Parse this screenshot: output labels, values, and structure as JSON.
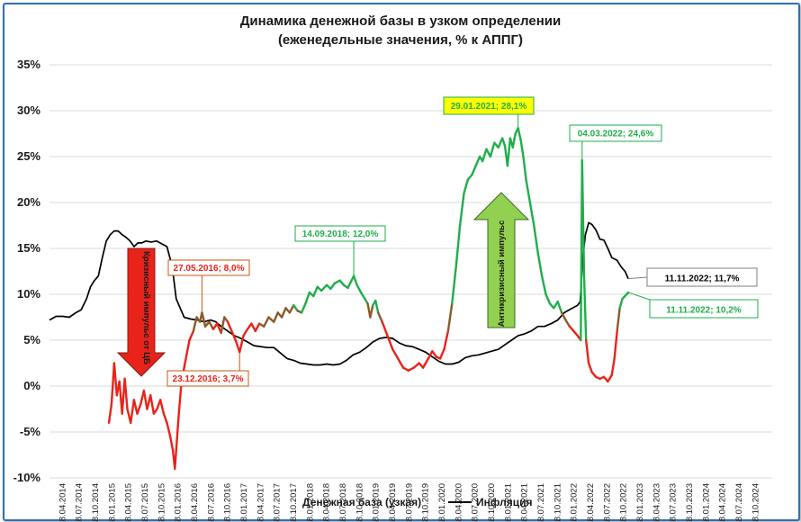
{
  "chart_data": {
    "type": "line",
    "title": "Динамика денежной базы в узком определении",
    "subtitle": "(еженедельные значения, % к АППГ)",
    "ylim": [
      -10,
      35
    ],
    "y_ticks": [
      "-10%",
      "-5%",
      "0%",
      "5%",
      "10%",
      "15%",
      "20%",
      "25%",
      "30%",
      "35%"
    ],
    "x_ticks": [
      "18.04.2014",
      "18.07.2014",
      "18.10.2014",
      "18.01.2015",
      "18.04.2015",
      "18.07.2015",
      "18.10.2015",
      "18.01.2016",
      "18.04.2016",
      "18.07.2016",
      "18.10.2016",
      "18.01.2017",
      "18.04.2017",
      "18.07.2017",
      "18.10.2017",
      "18.01.2018",
      "18.04.2018",
      "18.07.2018",
      "18.10.2018",
      "18.01.2019",
      "18.04.2019",
      "18.07.2019",
      "18.10.2019",
      "18.01.2020",
      "18.04.2020",
      "18.07.2020",
      "18.10.2020",
      "18.01.2021",
      "18.04.2021",
      "18.07.2021",
      "18.10.2021",
      "18.01.2022",
      "18.04.2022",
      "18.07.2022",
      "18.10.2022",
      "18.01.2023",
      "18.04.2023",
      "18.07.2023",
      "18.10.2023",
      "18.01.2024",
      "18.04.2024",
      "18.07.2024",
      "18.10.2024"
    ],
    "x_range": [
      2014.1,
      2025.05
    ],
    "series": [
      {
        "name": "Денежная база (узкая)",
        "color_low": "#e8231a",
        "color_high": "#1fae4b",
        "points": [
          [
            2015.0,
            -4.0
          ],
          [
            2015.04,
            -2.0
          ],
          [
            2015.08,
            2.5
          ],
          [
            2015.12,
            -1.0
          ],
          [
            2015.16,
            0.5
          ],
          [
            2015.2,
            -3.0
          ],
          [
            2015.24,
            0.8
          ],
          [
            2015.28,
            -2.5
          ],
          [
            2015.33,
            -4.0
          ],
          [
            2015.38,
            -1.5
          ],
          [
            2015.43,
            -3.0
          ],
          [
            2015.48,
            -2.0
          ],
          [
            2015.53,
            -0.5
          ],
          [
            2015.58,
            -2.5
          ],
          [
            2015.63,
            -1.0
          ],
          [
            2015.68,
            -3.0
          ],
          [
            2015.73,
            -2.5
          ],
          [
            2015.78,
            -1.5
          ],
          [
            2015.83,
            -3.0
          ],
          [
            2015.88,
            -4.0
          ],
          [
            2015.93,
            -5.5
          ],
          [
            2015.97,
            -7.0
          ],
          [
            2016.0,
            -9.0
          ],
          [
            2016.03,
            -6.0
          ],
          [
            2016.06,
            -3.0
          ],
          [
            2016.1,
            0.5
          ],
          [
            2016.14,
            2.0
          ],
          [
            2016.18,
            3.5
          ],
          [
            2016.22,
            5.0
          ],
          [
            2016.28,
            6.0
          ],
          [
            2016.33,
            7.5
          ],
          [
            2016.38,
            7.0
          ],
          [
            2016.41,
            8.0
          ],
          [
            2016.46,
            6.5
          ],
          [
            2016.52,
            7.0
          ],
          [
            2016.58,
            6.2
          ],
          [
            2016.64,
            6.8
          ],
          [
            2016.7,
            5.8
          ],
          [
            2016.75,
            7.5
          ],
          [
            2016.8,
            7.0
          ],
          [
            2016.86,
            6.0
          ],
          [
            2016.92,
            5.0
          ],
          [
            2016.98,
            3.7
          ],
          [
            2017.04,
            5.5
          ],
          [
            2017.1,
            6.2
          ],
          [
            2017.16,
            6.8
          ],
          [
            2017.22,
            6.0
          ],
          [
            2017.28,
            6.8
          ],
          [
            2017.35,
            6.5
          ],
          [
            2017.42,
            7.5
          ],
          [
            2017.5,
            7.0
          ],
          [
            2017.56,
            8.0
          ],
          [
            2017.62,
            7.5
          ],
          [
            2017.68,
            8.5
          ],
          [
            2017.74,
            8.0
          ],
          [
            2017.8,
            8.8
          ],
          [
            2017.86,
            8.2
          ],
          [
            2017.92,
            8.0
          ],
          [
            2017.98,
            9.0
          ],
          [
            2018.04,
            10.2
          ],
          [
            2018.1,
            9.8
          ],
          [
            2018.16,
            10.8
          ],
          [
            2018.22,
            10.4
          ],
          [
            2018.3,
            11.0
          ],
          [
            2018.36,
            10.6
          ],
          [
            2018.42,
            11.2
          ],
          [
            2018.5,
            11.5
          ],
          [
            2018.56,
            11.0
          ],
          [
            2018.62,
            10.7
          ],
          [
            2018.71,
            12.0
          ],
          [
            2018.76,
            11.0
          ],
          [
            2018.82,
            10.2
          ],
          [
            2018.88,
            9.5
          ],
          [
            2018.92,
            9.0
          ],
          [
            2018.96,
            7.5
          ],
          [
            2019.0,
            8.8
          ],
          [
            2019.04,
            9.3
          ],
          [
            2019.08,
            8.0
          ],
          [
            2019.14,
            7.0
          ],
          [
            2019.22,
            5.5
          ],
          [
            2019.3,
            4.0
          ],
          [
            2019.38,
            3.0
          ],
          [
            2019.46,
            2.0
          ],
          [
            2019.54,
            1.7
          ],
          [
            2019.62,
            2.0
          ],
          [
            2019.7,
            2.5
          ],
          [
            2019.76,
            2.0
          ],
          [
            2019.84,
            3.0
          ],
          [
            2019.9,
            3.8
          ],
          [
            2019.96,
            3.2
          ],
          [
            2020.02,
            3.0
          ],
          [
            2020.08,
            4.0
          ],
          [
            2020.14,
            6.0
          ],
          [
            2020.2,
            9.0
          ],
          [
            2020.26,
            13.0
          ],
          [
            2020.32,
            17.5
          ],
          [
            2020.38,
            21.0
          ],
          [
            2020.44,
            22.5
          ],
          [
            2020.5,
            23.0
          ],
          [
            2020.56,
            24.0
          ],
          [
            2020.62,
            25.0
          ],
          [
            2020.66,
            24.5
          ],
          [
            2020.72,
            25.8
          ],
          [
            2020.78,
            25.0
          ],
          [
            2020.84,
            26.5
          ],
          [
            2020.9,
            26.0
          ],
          [
            2020.96,
            27.0
          ],
          [
            2021.0,
            26.2
          ],
          [
            2021.04,
            24.0
          ],
          [
            2021.08,
            27.0
          ],
          [
            2021.12,
            26.0
          ],
          [
            2021.16,
            27.5
          ],
          [
            2021.2,
            28.1
          ],
          [
            2021.24,
            26.8
          ],
          [
            2021.28,
            25.0
          ],
          [
            2021.32,
            22.5
          ],
          [
            2021.38,
            20.0
          ],
          [
            2021.44,
            17.5
          ],
          [
            2021.5,
            14.5
          ],
          [
            2021.56,
            12.0
          ],
          [
            2021.62,
            10.0
          ],
          [
            2021.68,
            9.0
          ],
          [
            2021.74,
            8.5
          ],
          [
            2021.8,
            9.2
          ],
          [
            2021.86,
            8.0
          ],
          [
            2021.92,
            7.2
          ],
          [
            2021.98,
            6.5
          ],
          [
            2022.04,
            6.0
          ],
          [
            2022.1,
            5.5
          ],
          [
            2022.15,
            5.0
          ],
          [
            2022.17,
            24.6
          ],
          [
            2022.2,
            12.0
          ],
          [
            2022.23,
            5.0
          ],
          [
            2022.27,
            2.5
          ],
          [
            2022.32,
            1.5
          ],
          [
            2022.38,
            1.0
          ],
          [
            2022.44,
            0.8
          ],
          [
            2022.5,
            1.0
          ],
          [
            2022.56,
            0.5
          ],
          [
            2022.62,
            1.2
          ],
          [
            2022.66,
            3.0
          ],
          [
            2022.7,
            6.0
          ],
          [
            2022.74,
            8.5
          ],
          [
            2022.78,
            9.5
          ],
          [
            2022.87,
            10.2
          ]
        ]
      },
      {
        "name": "Инфляция",
        "color": "#000000",
        "points": [
          [
            2014.1,
            7.2
          ],
          [
            2014.2,
            7.6
          ],
          [
            2014.3,
            7.6
          ],
          [
            2014.4,
            7.5
          ],
          [
            2014.5,
            8.0
          ],
          [
            2014.58,
            8.3
          ],
          [
            2014.66,
            9.5
          ],
          [
            2014.72,
            10.8
          ],
          [
            2014.78,
            11.5
          ],
          [
            2014.84,
            12.0
          ],
          [
            2014.9,
            14.0
          ],
          [
            2014.96,
            15.8
          ],
          [
            2015.02,
            16.5
          ],
          [
            2015.08,
            16.9
          ],
          [
            2015.14,
            16.9
          ],
          [
            2015.2,
            16.5
          ],
          [
            2015.26,
            16.2
          ],
          [
            2015.32,
            15.8
          ],
          [
            2015.38,
            15.2
          ],
          [
            2015.44,
            15.6
          ],
          [
            2015.5,
            15.6
          ],
          [
            2015.56,
            15.8
          ],
          [
            2015.64,
            15.7
          ],
          [
            2015.72,
            15.8
          ],
          [
            2015.8,
            15.5
          ],
          [
            2015.88,
            15.2
          ],
          [
            2015.96,
            13.0
          ],
          [
            2016.02,
            9.5
          ],
          [
            2016.08,
            8.5
          ],
          [
            2016.14,
            7.5
          ],
          [
            2016.24,
            7.3
          ],
          [
            2016.34,
            7.2
          ],
          [
            2016.44,
            7.0
          ],
          [
            2016.54,
            7.2
          ],
          [
            2016.62,
            7.0
          ],
          [
            2016.7,
            6.5
          ],
          [
            2016.8,
            6.0
          ],
          [
            2016.9,
            5.5
          ],
          [
            2017.0,
            5.2
          ],
          [
            2017.1,
            4.8
          ],
          [
            2017.2,
            4.4
          ],
          [
            2017.3,
            4.3
          ],
          [
            2017.4,
            4.2
          ],
          [
            2017.5,
            4.2
          ],
          [
            2017.6,
            3.6
          ],
          [
            2017.7,
            3.0
          ],
          [
            2017.8,
            2.8
          ],
          [
            2017.9,
            2.5
          ],
          [
            2018.0,
            2.4
          ],
          [
            2018.1,
            2.3
          ],
          [
            2018.2,
            2.3
          ],
          [
            2018.3,
            2.4
          ],
          [
            2018.4,
            2.3
          ],
          [
            2018.5,
            2.4
          ],
          [
            2018.6,
            2.8
          ],
          [
            2018.7,
            3.4
          ],
          [
            2018.8,
            3.7
          ],
          [
            2018.9,
            4.2
          ],
          [
            2019.0,
            4.8
          ],
          [
            2019.1,
            5.2
          ],
          [
            2019.2,
            5.3
          ],
          [
            2019.3,
            5.2
          ],
          [
            2019.4,
            4.7
          ],
          [
            2019.5,
            4.4
          ],
          [
            2019.6,
            4.3
          ],
          [
            2019.7,
            4.0
          ],
          [
            2019.8,
            3.7
          ],
          [
            2019.9,
            3.2
          ],
          [
            2020.0,
            2.7
          ],
          [
            2020.1,
            2.4
          ],
          [
            2020.2,
            2.4
          ],
          [
            2020.3,
            2.6
          ],
          [
            2020.4,
            3.1
          ],
          [
            2020.5,
            3.3
          ],
          [
            2020.6,
            3.4
          ],
          [
            2020.7,
            3.6
          ],
          [
            2020.8,
            3.8
          ],
          [
            2020.9,
            4.0
          ],
          [
            2021.0,
            4.5
          ],
          [
            2021.1,
            5.0
          ],
          [
            2021.2,
            5.5
          ],
          [
            2021.3,
            5.7
          ],
          [
            2021.4,
            6.0
          ],
          [
            2021.5,
            6.5
          ],
          [
            2021.6,
            6.5
          ],
          [
            2021.7,
            6.8
          ],
          [
            2021.8,
            7.2
          ],
          [
            2021.9,
            8.0
          ],
          [
            2022.0,
            8.4
          ],
          [
            2022.1,
            8.8
          ],
          [
            2022.14,
            9.2
          ],
          [
            2022.18,
            14.0
          ],
          [
            2022.22,
            16.5
          ],
          [
            2022.27,
            17.8
          ],
          [
            2022.32,
            17.6
          ],
          [
            2022.38,
            17.0
          ],
          [
            2022.44,
            16.0
          ],
          [
            2022.5,
            15.9
          ],
          [
            2022.56,
            15.0
          ],
          [
            2022.62,
            14.0
          ],
          [
            2022.7,
            13.7
          ],
          [
            2022.76,
            13.0
          ],
          [
            2022.82,
            12.5
          ],
          [
            2022.87,
            11.7
          ]
        ]
      }
    ],
    "annotations": [
      {
        "label": "27.05.2016; 8,0%",
        "x": 2016.41,
        "y": 8.0,
        "style": "red"
      },
      {
        "label": "23.12.2016; 3,7%",
        "x": 2016.98,
        "y": 3.7,
        "style": "red"
      },
      {
        "label": "14.09.2018; 12,0%",
        "x": 2018.71,
        "y": 12.0,
        "style": "green"
      },
      {
        "label": "29.01.2021; 28,1%",
        "x": 2021.2,
        "y": 28.1,
        "style": "yellow"
      },
      {
        "label": "04.03.2022; 24,6%",
        "x": 2022.17,
        "y": 24.6,
        "style": "green"
      },
      {
        "label": "11.11.2022; 11,7%",
        "x": 2022.87,
        "y": 11.7,
        "style": "black"
      },
      {
        "label": "11.11.2022; 10,2%",
        "x": 2022.87,
        "y": 10.2,
        "style": "green"
      }
    ],
    "arrows": [
      {
        "label": "Кризисный импульс от ЦБ",
        "direction": "down",
        "color": "#e8231a"
      },
      {
        "label": "Антикризисный импульс",
        "direction": "up",
        "color": "#92d050"
      }
    ],
    "legend": {
      "position": "bottom",
      "items": [
        "Денежная база (узкая)",
        "Инфляция"
      ]
    }
  }
}
